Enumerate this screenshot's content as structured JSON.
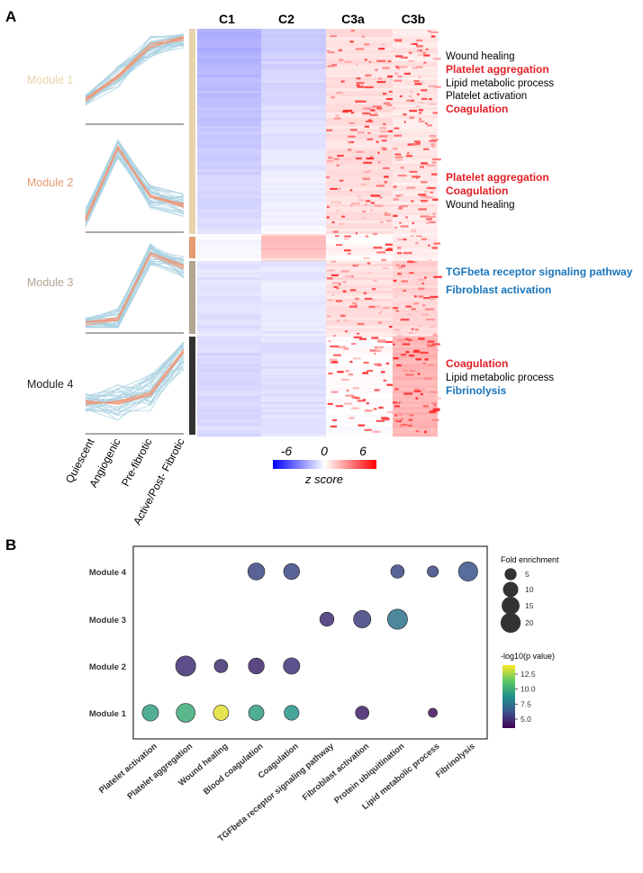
{
  "panel_a": {
    "label": "A",
    "modules": [
      {
        "name": "Module 1",
        "color": "#e7d4ad"
      },
      {
        "name": "Module 2",
        "color": "#e59a70"
      },
      {
        "name": "Module 3",
        "color": "#b3a493"
      },
      {
        "name": "Module 4",
        "color": "#333333"
      }
    ],
    "stages": [
      "Quiescent",
      "Angiogenic",
      "Pre-fibrotic",
      "Active/Post- Fibrotic"
    ],
    "cluster_labels": [
      "C1",
      "C2",
      "C3a",
      "C3b"
    ],
    "annotations": [
      {
        "text": "Wound healing",
        "color": "#000000",
        "bold": false
      },
      {
        "text": "Platelet aggregation",
        "color": "#e21f26",
        "bold": true
      },
      {
        "text": "Lipid metabolic process",
        "color": "#000000",
        "bold": false
      },
      {
        "text": "Platelet activation",
        "color": "#000000",
        "bold": false
      },
      {
        "text": "Coagulation",
        "color": "#e21f26",
        "bold": true
      },
      {
        "text": "Platelet aggregation",
        "color": "#e21f26",
        "bold": true
      },
      {
        "text": "Coagulation",
        "color": "#e21f26",
        "bold": true
      },
      {
        "text": "Wound healing",
        "color": "#000000",
        "bold": false
      },
      {
        "text": "TGFbeta receptor signaling pathway",
        "color": "#1a75bb",
        "bold": true
      },
      {
        "text": "Fibroblast activation",
        "color": "#1a75bb",
        "bold": true
      },
      {
        "text": "Coagulation",
        "color": "#e21f26",
        "bold": true
      },
      {
        "text": "Lipid metabolic process",
        "color": "#000000",
        "bold": false
      },
      {
        "text": "Fibrinolysis",
        "color": "#1a75bb",
        "bold": true
      }
    ],
    "zscore": {
      "ticks": [
        "-6",
        "0",
        "6"
      ],
      "label": "z score",
      "low_color": "#0000ff",
      "mid_color": "#ffffff",
      "high_color": "#ff0000"
    }
  },
  "panel_b": {
    "label": "B",
    "legend_size_title": "Fold enrichment",
    "legend_color_title": "-log10(p value)",
    "chart_data": {
      "type": "scatter",
      "x_categories": [
        "Platelet activation",
        "Platelet aggregation",
        "Wound healing",
        "Blood coagulation",
        "Coagulation",
        "TGFbeta receptor signaling pathway",
        "Fibroblast activation",
        "Protein ubiquitination",
        "Lipid metabolic process",
        "Fibrinolysis"
      ],
      "y_categories": [
        "Module 1",
        "Module 2",
        "Module 3",
        "Module 4"
      ],
      "points": [
        {
          "x": "Platelet activation",
          "y": "Module 1",
          "fold": 12,
          "logp": 9.5
        },
        {
          "x": "Platelet aggregation",
          "y": "Module 1",
          "fold": 17,
          "logp": 10.0
        },
        {
          "x": "Wound healing",
          "y": "Module 1",
          "fold": 10,
          "logp": 13.5
        },
        {
          "x": "Blood coagulation",
          "y": "Module 1",
          "fold": 10,
          "logp": 9.5
        },
        {
          "x": "Coagulation",
          "y": "Module 1",
          "fold": 9,
          "logp": 9.0
        },
        {
          "x": "Fibroblast activation",
          "y": "Module 1",
          "fold": 7,
          "logp": 4.5
        },
        {
          "x": "Lipid metabolic process",
          "y": "Module 1",
          "fold": 2,
          "logp": 4.0
        },
        {
          "x": "Platelet aggregation",
          "y": "Module 2",
          "fold": 20,
          "logp": 5.0
        },
        {
          "x": "Wound healing",
          "y": "Module 2",
          "fold": 7,
          "logp": 5.0
        },
        {
          "x": "Blood coagulation",
          "y": "Module 2",
          "fold": 11,
          "logp": 4.8
        },
        {
          "x": "Coagulation",
          "y": "Module 2",
          "fold": 12,
          "logp": 5.2
        },
        {
          "x": "TGFbeta receptor signaling pathway",
          "y": "Module 3",
          "fold": 8,
          "logp": 5.0
        },
        {
          "x": "Fibroblast activation",
          "y": "Module 3",
          "fold": 14,
          "logp": 5.5
        },
        {
          "x": "Protein ubiquitination",
          "y": "Module 3",
          "fold": 20,
          "logp": 7.5
        },
        {
          "x": "Blood coagulation",
          "y": "Module 4",
          "fold": 13,
          "logp": 5.8
        },
        {
          "x": "Coagulation",
          "y": "Module 4",
          "fold": 11,
          "logp": 5.8
        },
        {
          "x": "Protein ubiquitination",
          "y": "Module 4",
          "fold": 7,
          "logp": 5.8
        },
        {
          "x": "Lipid metabolic process",
          "y": "Module 4",
          "fold": 4,
          "logp": 5.8
        },
        {
          "x": "Fibrinolysis",
          "y": "Module 4",
          "fold": 18,
          "logp": 6.2
        }
      ],
      "size_legend": [
        5,
        10,
        15,
        20
      ],
      "color_ticks": [
        12.5,
        10.0,
        7.5,
        5.0
      ],
      "color_tick_labels": [
        "12.5",
        "10.0",
        "7.5",
        "5.0"
      ],
      "color_range": [
        3.5,
        14
      ],
      "colorscale": [
        "#440154",
        "#3b528b",
        "#21908d",
        "#5dc963",
        "#fde725"
      ]
    }
  }
}
